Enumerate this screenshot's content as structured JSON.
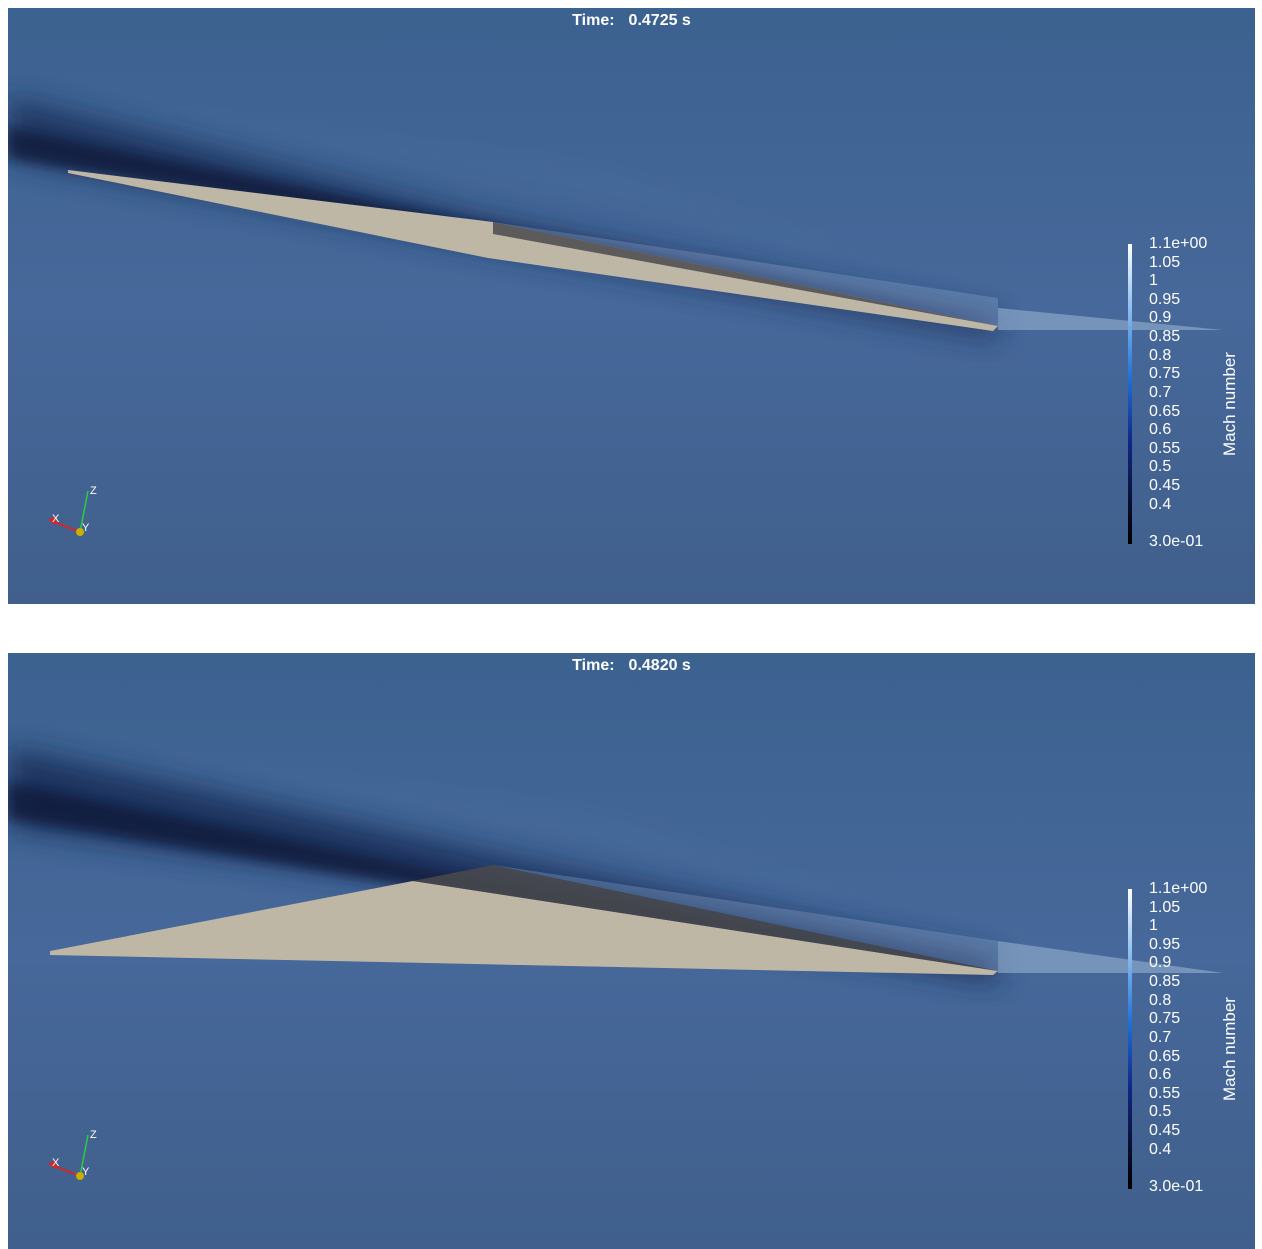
{
  "colors": {
    "background": "#3f6590",
    "dark_wake": "#0d1a3a",
    "surface": "#bfb7a6",
    "colormap_top": "#ffffff",
    "colormap_bottom": "#000000"
  },
  "colorbar": {
    "title": "Mach number",
    "max_label": "1.1e+00",
    "min_label": "3.0e-01",
    "ticks": [
      "1.05",
      "1",
      "0.95",
      "0.9",
      "0.85",
      "0.8",
      "0.75",
      "0.7",
      "0.65",
      "0.6",
      "0.55",
      "0.5",
      "0.45",
      "0.4"
    ]
  },
  "axes_triad": {
    "x": "X",
    "y": "Y",
    "z": "Z"
  },
  "panels": [
    {
      "time_prefix": "Time:",
      "time_value": "0.4725 s"
    },
    {
      "time_prefix": "Time:",
      "time_value": "0.4820 s"
    }
  ]
}
